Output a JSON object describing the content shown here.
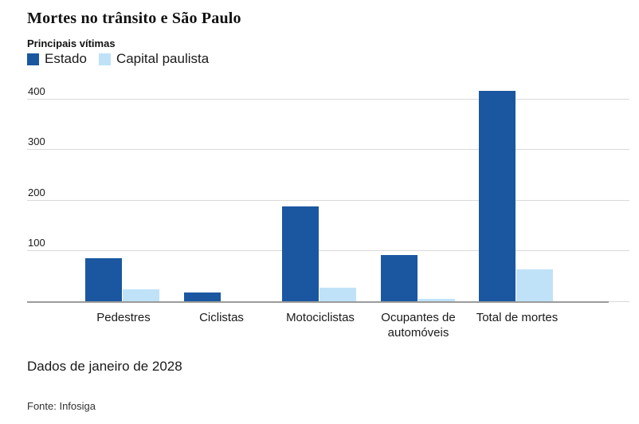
{
  "chart_data": {
    "type": "bar",
    "title": "Mortes no trânsito e São Paulo",
    "subtitle": "Principais vítimas",
    "categories": [
      "Pedestres",
      "Ciclistas",
      "Motociclistas",
      "Ocupantes de automóveis",
      "Total de mortes"
    ],
    "series": [
      {
        "name": "Estado",
        "color": "#1a57a0",
        "values": [
          86,
          19,
          189,
          93,
          418
        ]
      },
      {
        "name": "Capital paulista",
        "color": "#bfe2f9",
        "values": [
          25,
          2,
          28,
          6,
          65
        ]
      }
    ],
    "yticks": [
      100,
      200,
      300,
      400
    ],
    "ylim": [
      0,
      427
    ],
    "grid": true,
    "legend_position": "top-left",
    "xlabel": "",
    "ylabel": ""
  },
  "notes": {
    "data_note": "Dados de janeiro de 2028",
    "source": "Fonte: Infosiga"
  },
  "colors": {
    "estado": "#1a57a0",
    "capital_paulista": "#bfe2f9",
    "gridline": "#d9d9d9",
    "baseline": "#9b9b9b",
    "text": "#1a1a1a"
  }
}
